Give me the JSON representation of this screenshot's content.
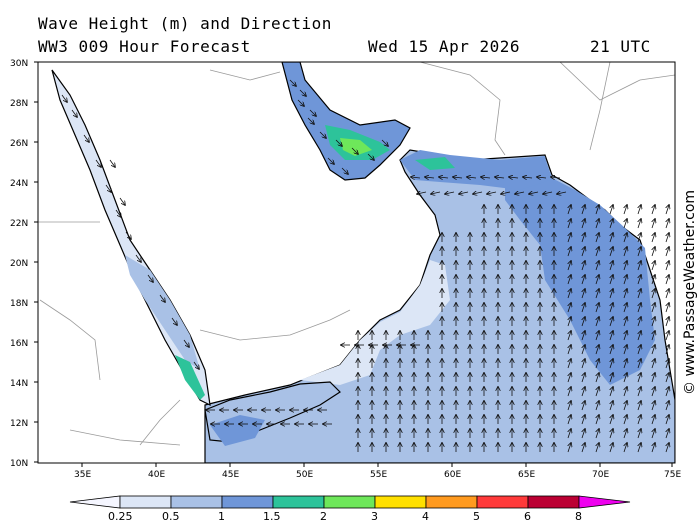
{
  "header": {
    "title": "Wave Height (m) and Direction",
    "subtitle": "WW3 009 Hour Forecast",
    "date": "Wed 15 Apr 2026",
    "time": "21 UTC"
  },
  "credit": "© www.PassageWeather.com",
  "map": {
    "lat_labels": [
      "30N",
      "28N",
      "26N",
      "24N",
      "22N",
      "20N",
      "18N",
      "16N",
      "14N",
      "12N",
      "10N"
    ],
    "lon_labels": [
      "35E",
      "40E",
      "45E",
      "50E",
      "55E",
      "60E",
      "65E",
      "70E",
      "75E"
    ],
    "lon_range": [
      32,
      75
    ],
    "lat_range": [
      10,
      30
    ],
    "land_color": "#ffffff",
    "border_color": "#9a9a9a",
    "coast_color": "#000000"
  },
  "colorbar": {
    "labels": [
      "0.25",
      "0.5",
      "1",
      "1.5",
      "2",
      "3",
      "4",
      "5",
      "6",
      "8"
    ],
    "colors": [
      "#f5f6ff",
      "#dce6f6",
      "#a9c1e6",
      "#6f96d8",
      "#2dc39a",
      "#6ee75a",
      "#ffe000",
      "#ff9a1f",
      "#ff3a3a",
      "#bb0033",
      "#ee00ee"
    ]
  }
}
